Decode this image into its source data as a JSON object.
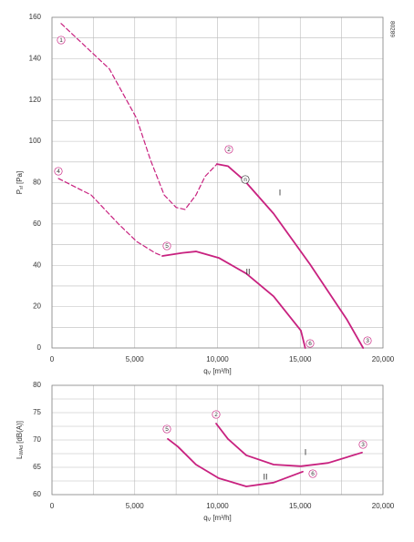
{
  "chart_data": [
    {
      "type": "line",
      "ylabel": {
        "main": "P",
        "sub": "sf",
        "unit": "[Pa]"
      },
      "xlabel": {
        "main": "q",
        "sub": "V",
        "unit": "[m³/h]"
      },
      "xlim": [
        0,
        20000
      ],
      "xticks": [
        0,
        {
          "value": 5000,
          "label": "5,000"
        },
        {
          "value": 10000,
          "label": "10,000"
        },
        {
          "value": 15000,
          "label": "15,000"
        },
        {
          "value": 20000,
          "label": "20,000"
        }
      ],
      "xgrid": [
        2500,
        7500,
        12500,
        17500
      ],
      "ylim": [
        0,
        160
      ],
      "yticks": [
        0,
        20,
        40,
        60,
        80,
        100,
        120,
        140,
        160
      ],
      "ygrid": [
        10,
        30,
        50,
        70,
        90,
        110,
        130,
        150
      ],
      "grid": true,
      "series": [
        {
          "style": "dashed",
          "color": "#c8217f",
          "x": [
            550,
            3470,
            5120,
            5950,
            6780,
            7500,
            8040,
            8700,
            9250,
            9970
          ],
          "values": [
            157,
            135,
            111,
            91,
            74,
            68,
            67,
            74,
            83,
            89
          ]
        },
        {
          "style": "solid",
          "color": "#c8217f",
          "x": [
            9970,
            10630,
            11630,
            13390,
            15590,
            17800,
            18800
          ],
          "values": [
            89,
            88,
            81,
            65,
            40.5,
            14,
            0
          ]
        },
        {
          "style": "dashed",
          "color": "#c8217f",
          "x": [
            390,
            2370,
            4020,
            5120,
            6230,
            6670
          ],
          "values": [
            82,
            74,
            60,
            51.5,
            46,
            44.5
          ]
        },
        {
          "style": "solid",
          "color": "#c8217f",
          "x": [
            6670,
            7880,
            8700,
            10080,
            11740,
            13390,
            15040,
            15300
          ],
          "values": [
            44.5,
            46,
            46.7,
            43.6,
            36,
            25,
            8.4,
            0
          ]
        }
      ],
      "annotations": [
        "1",
        "2",
        "3",
        "4",
        "5",
        "6",
        "I",
        "II",
        "n",
        "80289"
      ]
    },
    {
      "type": "line",
      "ylabel": {
        "main": "L",
        "sub": "WAd",
        "unit": "[dB(A)]"
      },
      "xlabel": {
        "main": "q",
        "sub": "V",
        "unit": "[m³/h]"
      },
      "xlim": [
        0,
        20000
      ],
      "xticks": [
        0,
        {
          "value": 5000,
          "label": "5,000"
        },
        {
          "value": 10000,
          "label": "10,000"
        },
        {
          "value": 15000,
          "label": "15,000"
        },
        {
          "value": 20000,
          "label": "20,000"
        }
      ],
      "xgrid": [
        2500,
        7500,
        12500,
        17500
      ],
      "ylim": [
        60,
        80
      ],
      "yticks": [
        60,
        65,
        70,
        75,
        80
      ],
      "ygrid": [
        62.5,
        67.5,
        72.5,
        77.5
      ],
      "grid": true,
      "series": [
        {
          "style": "solid",
          "color": "#c8217f",
          "x": [
            9920,
            10630,
            11740,
            13390,
            15040,
            16690,
            18730
          ],
          "values": [
            73,
            70.2,
            67.2,
            65.5,
            65.2,
            65.8,
            67.7
          ]
        },
        {
          "style": "solid",
          "color": "#c8217f",
          "x": [
            7000,
            7600,
            8700,
            10080,
            11740,
            13390,
            15150
          ],
          "values": [
            70.2,
            68.8,
            65.5,
            63,
            61.5,
            62.2,
            64.2
          ]
        }
      ],
      "annotations": [
        "2",
        "3",
        "5",
        "6",
        "I",
        "II"
      ]
    }
  ]
}
